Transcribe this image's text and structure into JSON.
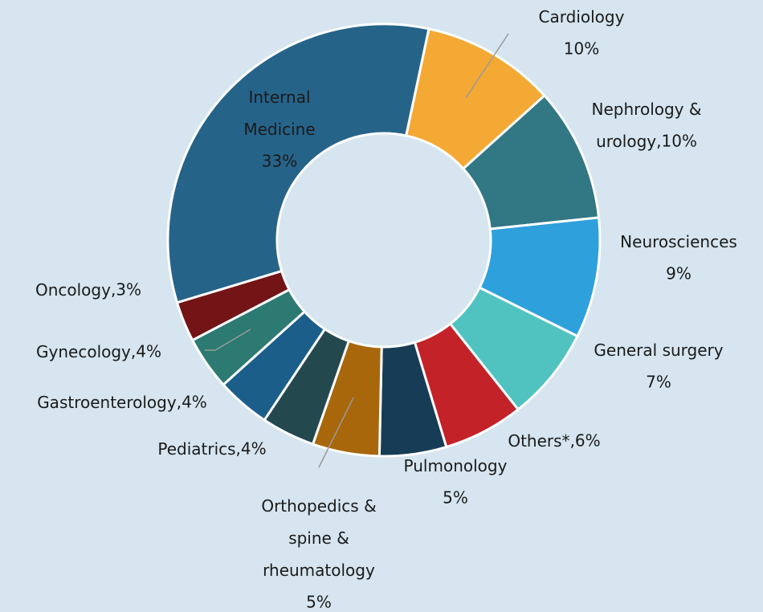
{
  "chart_data": {
    "type": "donut",
    "categories": [
      "Cardiology",
      "Nephrology & urology",
      "Neurosciences",
      "General surgery",
      "Others*",
      "Pulmonology",
      "Orthopedics & spine & rheumatology",
      "Pediatrics",
      "Gastroenterology",
      "Gynecology",
      "Oncology",
      "Internal Medicine"
    ],
    "values": [
      10,
      10,
      9,
      7,
      6,
      5,
      5,
      4,
      4,
      4,
      3,
      33
    ],
    "value_labels": [
      "10%",
      "10%",
      "9%",
      "7%",
      "6%",
      "5%",
      "5%",
      "4%",
      "4%",
      "4%",
      "3%",
      "33%"
    ],
    "colors": [
      "#f4a935",
      "#327784",
      "#2ea0dc",
      "#50c3c0",
      "#c32228",
      "#173d56",
      "#a8670b",
      "#23494f",
      "#1b5e8a",
      "#2c7a72",
      "#731417",
      "#266389"
    ]
  }
}
